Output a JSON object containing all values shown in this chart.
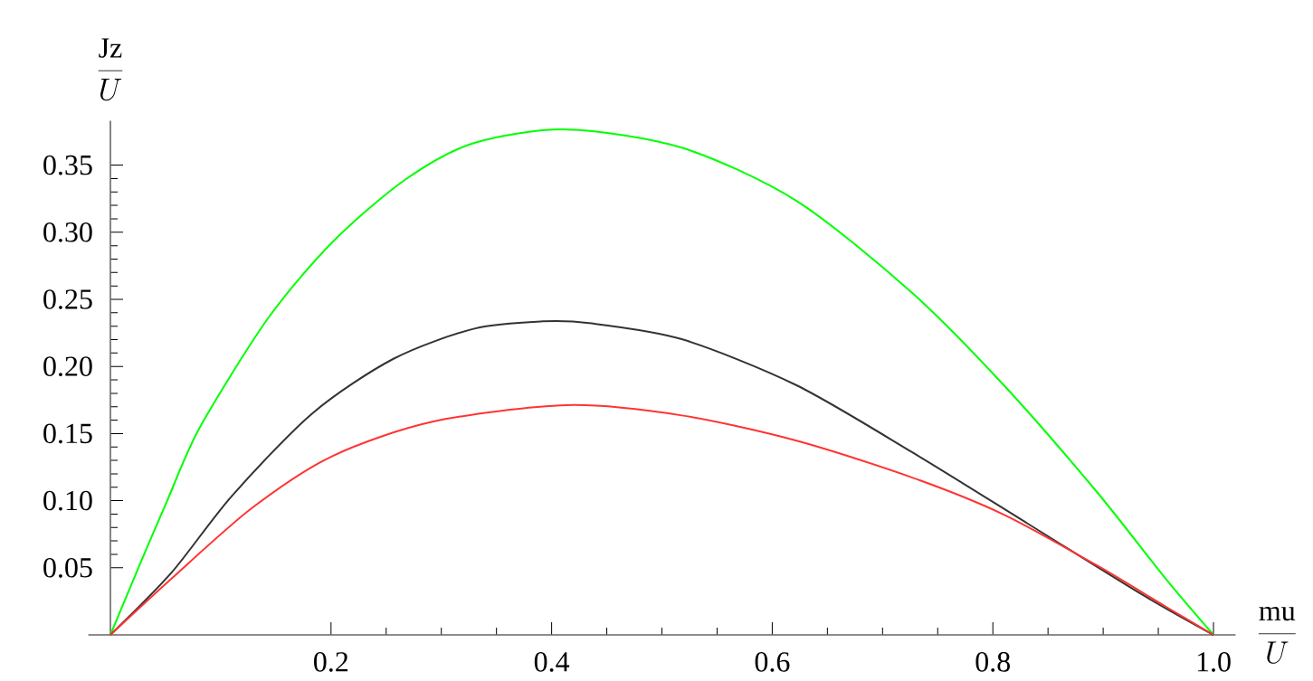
{
  "chart_data": {
    "type": "line",
    "xlabel": "\\frac{\\mathrm{mu}}{U}",
    "ylabel": "\\frac{\\mathrm{Jz}}{U}",
    "xlim": [
      -0.02,
      1.02
    ],
    "ylim": [
      0,
      0.383
    ],
    "xticks": [
      0.2,
      0.4,
      0.6,
      0.8,
      {
        "value": 1.0,
        "label": "1.0"
      }
    ],
    "yticks": [
      0.05,
      {
        "value": 0.1,
        "label": "0.10"
      },
      0.15,
      {
        "value": 0.2,
        "label": "0.20"
      },
      0.25,
      {
        "value": 0.3,
        "label": "0.30"
      },
      0.35
    ],
    "grid": false,
    "marker": "none",
    "line_style": "solid",
    "series": [
      {
        "color": "#00ff00",
        "x": [
          0,
          0.0295,
          0.0515,
          0.081,
          0.143,
          0.2017,
          0.268,
          0.33,
          0.414,
          0.518,
          0.622,
          0.727,
          0.81,
          0.894,
          0.957,
          1.0
        ],
        "values": [
          0,
          0.058,
          0.1,
          0.1545,
          0.236,
          0.293,
          0.3396,
          0.3666,
          0.3766,
          0.363,
          0.3234,
          0.2547,
          0.186,
          0.1068,
          0.0415,
          0
        ]
      },
      {
        "color": "#333333",
        "x": [
          0,
          0.0552,
          0.11,
          0.183,
          0.2566,
          0.33,
          0.392,
          0.434,
          0.518,
          0.622,
          0.727,
          0.8316,
          0.936,
          1.0
        ],
        "values": [
          0,
          0.0462,
          0.1034,
          0.165,
          0.2057,
          0.2282,
          0.2336,
          0.2323,
          0.2203,
          0.186,
          0.136,
          0.0829,
          0.0297,
          0
        ]
      },
      {
        "color": "#ff3333",
        "x": [
          0,
          0.0552,
          0.128,
          0.2017,
          0.293,
          0.414,
          0.518,
          0.622,
          0.727,
          0.81,
          0.894,
          0.957,
          1.0
        ],
        "values": [
          0,
          0.0418,
          0.0943,
          0.1334,
          0.159,
          0.1712,
          0.1635,
          0.1447,
          0.1172,
          0.0896,
          0.0519,
          0.0209,
          0
        ]
      }
    ]
  }
}
